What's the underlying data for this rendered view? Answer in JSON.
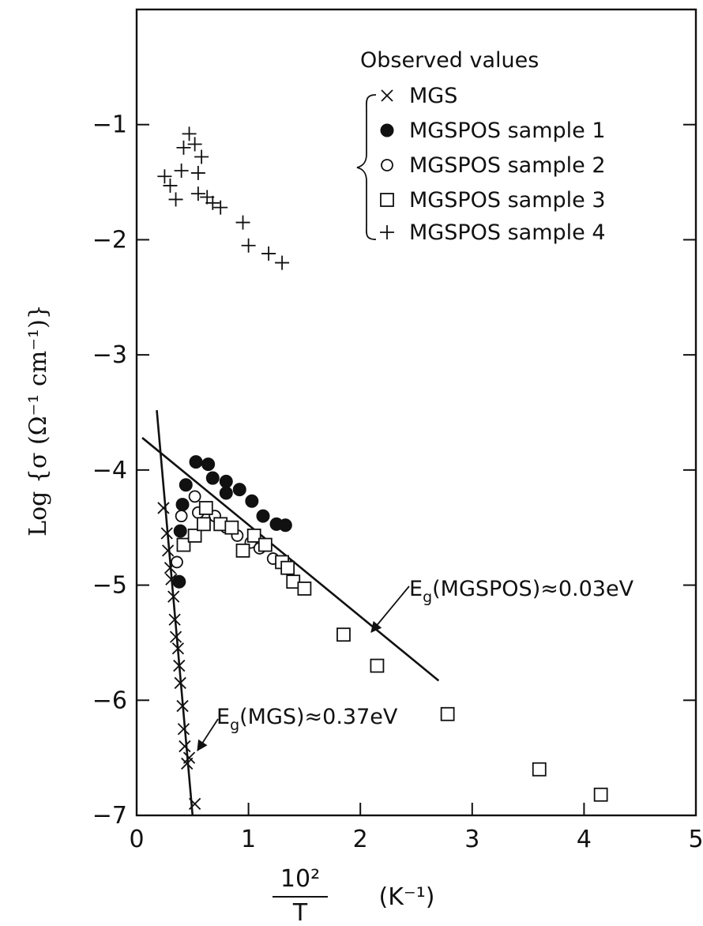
{
  "chart_data": {
    "type": "scatter",
    "xlabel_numerator": "10²",
    "xlabel_denominator": "T",
    "xlabel_unit": "(K⁻¹)",
    "ylabel": "Log {σ (Ω⁻¹ cm⁻¹)}",
    "xlim": [
      0,
      5
    ],
    "ylim": [
      -7,
      0
    ],
    "x_ticks": [
      0,
      1,
      2,
      3,
      4,
      5
    ],
    "x_tick_labels": [
      "0",
      "1",
      "2",
      "3",
      "4",
      "5"
    ],
    "y_ticks": [
      -7,
      -6,
      -5,
      -4,
      -3,
      -2,
      -1
    ],
    "y_tick_labels": [
      "−7",
      "−6",
      "−5",
      "−4",
      "−3",
      "−2",
      "−1"
    ],
    "legend_title": "Observed values",
    "legend_position": "top-right",
    "series": [
      {
        "name": "MGS",
        "marker": "x",
        "points": [
          [
            0.24,
            -4.33
          ],
          [
            0.27,
            -4.55
          ],
          [
            0.28,
            -4.7
          ],
          [
            0.3,
            -4.85
          ],
          [
            0.31,
            -4.95
          ],
          [
            0.33,
            -5.1
          ],
          [
            0.34,
            -5.3
          ],
          [
            0.35,
            -5.45
          ],
          [
            0.37,
            -5.55
          ],
          [
            0.38,
            -5.7
          ],
          [
            0.39,
            -5.85
          ],
          [
            0.41,
            -6.05
          ],
          [
            0.42,
            -6.25
          ],
          [
            0.43,
            -6.4
          ],
          [
            0.45,
            -6.55
          ],
          [
            0.47,
            -6.5
          ],
          [
            0.52,
            -6.9
          ]
        ]
      },
      {
        "name": "MGSPOS sample 1",
        "marker": "filled-circle",
        "points": [
          [
            0.38,
            -4.97
          ],
          [
            0.39,
            -4.53
          ],
          [
            0.41,
            -4.3
          ],
          [
            0.44,
            -4.13
          ],
          [
            0.53,
            -3.93
          ],
          [
            0.64,
            -3.95
          ],
          [
            0.68,
            -4.07
          ],
          [
            0.8,
            -4.1
          ],
          [
            0.8,
            -4.2
          ],
          [
            0.92,
            -4.17
          ],
          [
            1.03,
            -4.27
          ],
          [
            1.13,
            -4.4
          ],
          [
            1.25,
            -4.47
          ],
          [
            1.33,
            -4.48
          ]
        ]
      },
      {
        "name": "MGSPOS sample 2",
        "marker": "open-circle",
        "points": [
          [
            0.36,
            -4.8
          ],
          [
            0.4,
            -4.4
          ],
          [
            0.52,
            -4.23
          ],
          [
            0.55,
            -4.37
          ],
          [
            0.7,
            -4.4
          ],
          [
            0.8,
            -4.5
          ],
          [
            0.9,
            -4.57
          ],
          [
            1.02,
            -4.63
          ],
          [
            1.1,
            -4.68
          ],
          [
            1.22,
            -4.77
          ],
          [
            1.33,
            -4.8
          ]
        ]
      },
      {
        "name": "MGSPOS sample 3",
        "marker": "open-square",
        "points": [
          [
            0.42,
            -4.65
          ],
          [
            0.52,
            -4.57
          ],
          [
            0.62,
            -4.33
          ],
          [
            0.6,
            -4.47
          ],
          [
            0.75,
            -4.47
          ],
          [
            0.85,
            -4.5
          ],
          [
            0.95,
            -4.7
          ],
          [
            1.05,
            -4.57
          ],
          [
            1.15,
            -4.65
          ],
          [
            1.3,
            -4.8
          ],
          [
            1.35,
            -4.85
          ],
          [
            1.4,
            -4.97
          ],
          [
            1.5,
            -5.03
          ],
          [
            1.85,
            -5.43
          ],
          [
            2.15,
            -5.7
          ],
          [
            2.78,
            -6.12
          ],
          [
            3.6,
            -6.6
          ],
          [
            4.15,
            -6.82
          ]
        ]
      },
      {
        "name": "MGSPOS sample 4",
        "marker": "plus",
        "points": [
          [
            0.25,
            -1.45
          ],
          [
            0.3,
            -1.53
          ],
          [
            0.35,
            -1.65
          ],
          [
            0.4,
            -1.4
          ],
          [
            0.42,
            -1.2
          ],
          [
            0.47,
            -1.08
          ],
          [
            0.52,
            -1.17
          ],
          [
            0.55,
            -1.42
          ],
          [
            0.55,
            -1.6
          ],
          [
            0.58,
            -1.28
          ],
          [
            0.63,
            -1.63
          ],
          [
            0.68,
            -1.68
          ],
          [
            0.75,
            -1.72
          ],
          [
            0.95,
            -1.85
          ],
          [
            1.0,
            -2.05
          ],
          [
            1.18,
            -2.12
          ],
          [
            1.3,
            -2.2
          ]
        ]
      }
    ],
    "fit_lines": [
      {
        "label_base": "E",
        "label_sub": "g",
        "label_rest": "(MGSPOS)≈0.03eV",
        "from": [
          0.05,
          -3.72
        ],
        "to": [
          2.7,
          -5.83
        ]
      },
      {
        "label_base": "E",
        "label_sub": "g",
        "label_rest": "(MGS)≈0.37eV",
        "from": [
          0.18,
          -3.48
        ],
        "to": [
          0.5,
          -7.0
        ]
      }
    ],
    "grid": false
  }
}
